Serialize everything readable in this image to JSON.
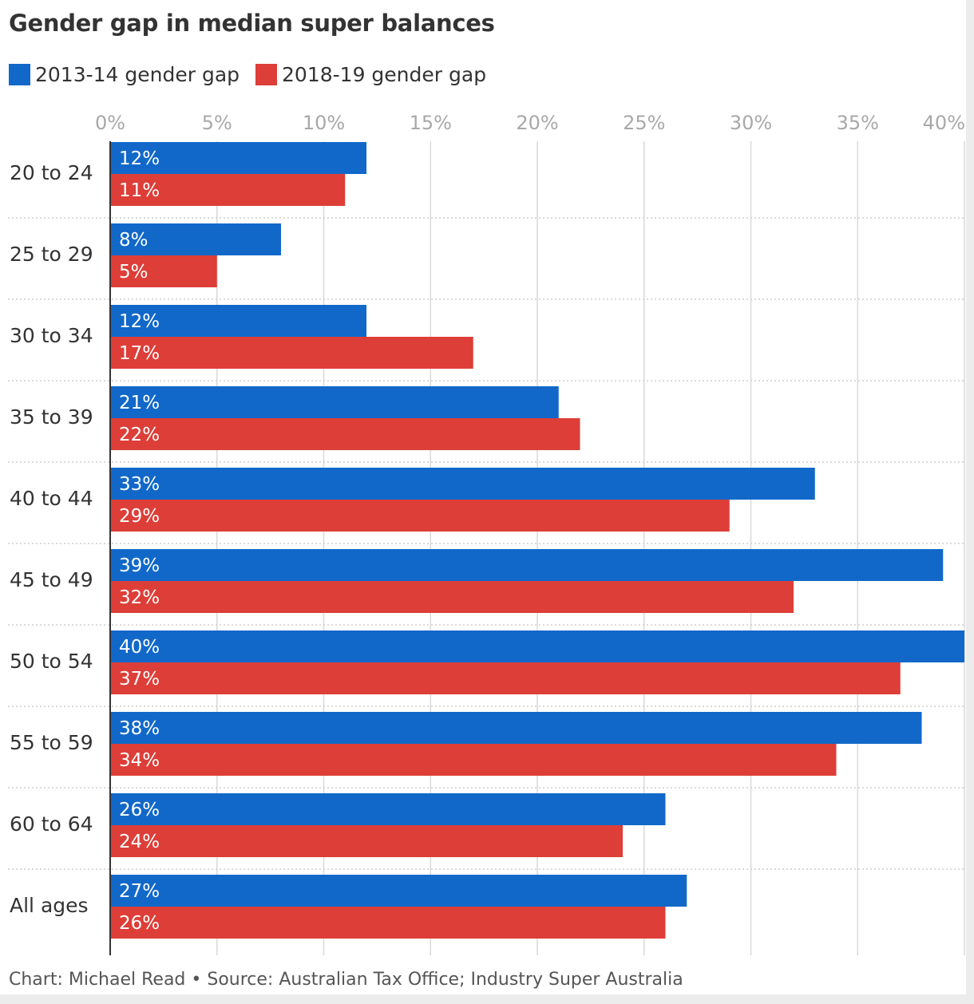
{
  "colors": {
    "series_2013_14": "#1168c9",
    "series_2018_19": "#dd3e38",
    "grid": "#d9d9d9",
    "divider": "#cfcfcf",
    "axis": "#333333"
  },
  "legend": {
    "items": [
      {
        "label": "2013-14 gender gap",
        "color": "#1168c9"
      },
      {
        "label": "2018-19 gender gap",
        "color": "#dd3e38"
      }
    ]
  },
  "footer": {
    "credit": "Chart: Michael Read • Source: Australian Tax Office; Industry Super Australia"
  },
  "chart_data": {
    "type": "bar",
    "orientation": "horizontal",
    "title": "Gender gap in median super balances",
    "xlabel": "",
    "ylabel": "",
    "xlim": [
      0,
      40
    ],
    "ticks": [
      0,
      5,
      10,
      15,
      20,
      25,
      30,
      35,
      40
    ],
    "tick_labels": [
      "0%",
      "5%",
      "10%",
      "15%",
      "20%",
      "25%",
      "30%",
      "35%",
      "40%"
    ],
    "tick_label_position": "top",
    "grid": true,
    "legend_position": "top-left",
    "categories": [
      "20 to 24",
      "25 to 29",
      "30 to 34",
      "35 to 39",
      "40 to 44",
      "45 to 49",
      "50 to 54",
      "55 to 59",
      "60 to 64",
      "All ages"
    ],
    "series": [
      {
        "name": "2013-14 gender gap",
        "color": "#1168c9",
        "values": [
          12,
          8,
          12,
          21,
          33,
          39,
          40,
          38,
          26,
          27
        ],
        "labels": [
          "12%",
          "8%",
          "12%",
          "21%",
          "33%",
          "39%",
          "40%",
          "38%",
          "26%",
          "27%"
        ]
      },
      {
        "name": "2018-19 gender gap",
        "color": "#dd3e38",
        "values": [
          11,
          5,
          17,
          22,
          29,
          32,
          37,
          34,
          24,
          26
        ],
        "labels": [
          "11%",
          "5%",
          "17%",
          "22%",
          "29%",
          "32%",
          "37%",
          "34%",
          "24%",
          "26%"
        ]
      }
    ]
  }
}
